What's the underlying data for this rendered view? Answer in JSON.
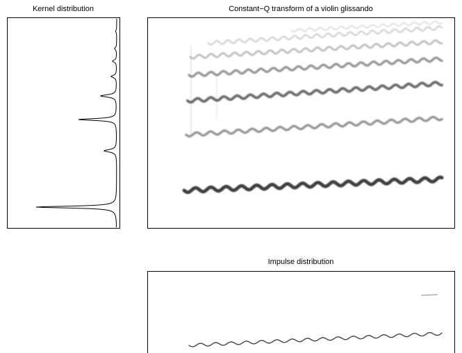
{
  "panels": [
    {
      "title": "Kernel distribution"
    },
    {
      "title": "Constant−Q transform of a violin glissando"
    },
    {
      "title": "Impulse distribution"
    }
  ]
}
